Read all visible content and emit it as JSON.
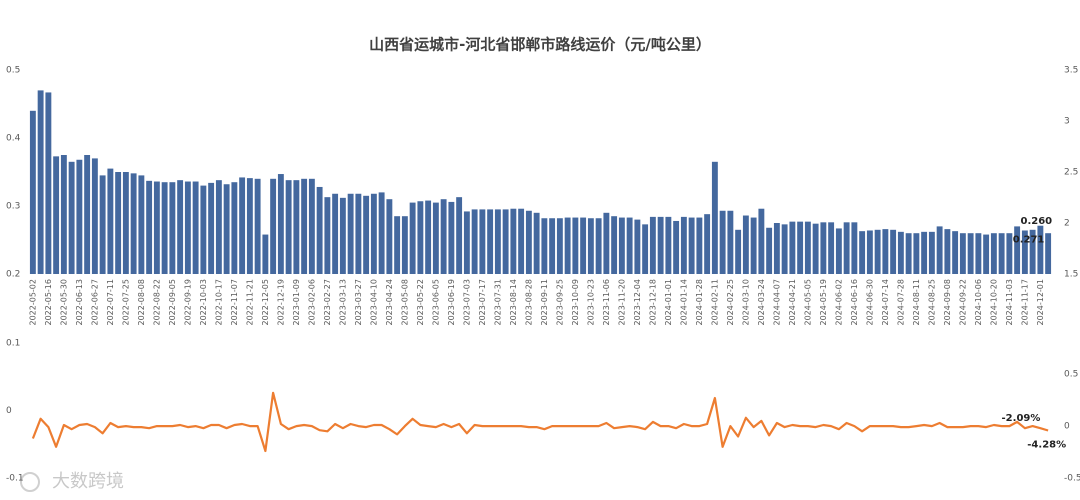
{
  "chart_data": [
    {
      "type": "bar",
      "title": "山西省运城市-河北省邯郸市路线运价（元/吨公里）",
      "color": "#44689e",
      "categories": [
        "2022-05-02",
        null,
        "2022-05-16",
        null,
        "2022-05-30",
        null,
        "2022-06-13",
        null,
        "2022-06-27",
        null,
        "2022-07-11",
        null,
        "2022-07-25",
        null,
        "2022-08-08",
        null,
        "2022-08-22",
        null,
        "2022-09-05",
        null,
        "2022-09-19",
        null,
        "2022-10-03",
        null,
        "2022-10-17",
        null,
        "2022-11-07",
        null,
        "2022-11-21",
        null,
        "2022-12-05",
        null,
        "2022-12-19",
        null,
        "2023-01-09",
        null,
        "2023-02-06",
        null,
        "2023-02-27",
        null,
        "2023-03-13",
        null,
        "2023-03-27",
        null,
        "2023-04-10",
        null,
        "2023-04-24",
        null,
        "2023-05-08",
        null,
        "2023-05-22",
        null,
        "2023-06-05",
        null,
        "2023-06-19",
        null,
        "2023-07-03",
        null,
        "2023-07-17",
        null,
        "2023-07-31",
        null,
        "2023-08-14",
        null,
        "2023-08-28",
        null,
        "2023-09-11",
        null,
        "2023-09-25",
        null,
        "2023-10-09",
        null,
        "2023-10-23",
        null,
        "2023-11-06",
        null,
        "2023-11-20",
        null,
        "2023-12-04",
        null,
        "2023-12-18",
        null,
        "2024-01-01",
        null,
        "2024-01-14",
        null,
        "2024-01-28",
        null,
        "2024-02-11",
        null,
        "2024-02-25",
        null,
        "2024-03-10",
        null,
        "2024-03-24",
        null,
        "2024-04-07",
        null,
        "2024-04-21",
        null,
        "2024-05-05",
        null,
        "2024-05-19",
        null,
        "2024-06-02",
        null,
        "2024-06-16",
        null,
        "2024-06-30",
        null,
        "2024-07-14",
        null,
        "2024-07-28",
        null,
        "2024-08-11",
        null,
        "2024-08-25",
        null,
        "2024-09-08",
        null,
        "2024-09-22",
        null,
        "2024-10-06",
        null,
        "2024-10-20",
        null,
        "2024-11-03",
        null,
        "2024-11-17",
        null,
        "2024-12-01",
        null
      ],
      "values": [
        0.44,
        0.47,
        0.467,
        0.373,
        0.375,
        0.365,
        0.368,
        0.375,
        0.37,
        0.345,
        0.355,
        0.35,
        0.35,
        0.348,
        0.345,
        0.337,
        0.336,
        0.335,
        0.335,
        0.338,
        0.336,
        0.336,
        0.33,
        0.334,
        0.338,
        0.332,
        0.335,
        0.342,
        0.341,
        0.34,
        0.258,
        0.34,
        0.347,
        0.338,
        0.338,
        0.34,
        0.34,
        0.328,
        0.313,
        0.318,
        0.312,
        0.318,
        0.318,
        0.315,
        0.318,
        0.32,
        0.31,
        0.285,
        0.285,
        0.305,
        0.307,
        0.308,
        0.305,
        0.31,
        0.306,
        0.313,
        0.292,
        0.295,
        0.295,
        0.295,
        0.295,
        0.295,
        0.296,
        0.296,
        0.293,
        0.29,
        0.282,
        0.282,
        0.282,
        0.283,
        0.283,
        0.283,
        0.282,
        0.282,
        0.29,
        0.285,
        0.283,
        0.283,
        0.28,
        0.273,
        0.284,
        0.284,
        0.284,
        0.278,
        0.284,
        0.283,
        0.283,
        0.288,
        0.365,
        0.293,
        0.293,
        0.265,
        0.286,
        0.283,
        0.296,
        0.268,
        0.275,
        0.273,
        0.277,
        0.277,
        0.277,
        0.274,
        0.276,
        0.276,
        0.267,
        0.276,
        0.276,
        0.263,
        0.264,
        0.265,
        0.266,
        0.265,
        0.262,
        0.26,
        0.26,
        0.262,
        0.262,
        0.27,
        0.266,
        0.263,
        0.26,
        0.26,
        0.26,
        0.258,
        0.26,
        0.26,
        0.26,
        0.27,
        0.264,
        0.265,
        0.271,
        0.26
      ],
      "value_labels": [
        null,
        null,
        null,
        null,
        null,
        null,
        null,
        null,
        null,
        null,
        null,
        null,
        null,
        null,
        null,
        null,
        null,
        null,
        null,
        null,
        null,
        null,
        null,
        null,
        null,
        null,
        null,
        null,
        null,
        null,
        null,
        null,
        null,
        null,
        null,
        null,
        null,
        null,
        null,
        null,
        null,
        null,
        null,
        null,
        null,
        null,
        null,
        null,
        null,
        null,
        null,
        null,
        null,
        null,
        null,
        null,
        null,
        null,
        null,
        null,
        null,
        null,
        null,
        null,
        null,
        null,
        null,
        null,
        null,
        null,
        null,
        null,
        null,
        null,
        null,
        null,
        null,
        null,
        null,
        null,
        null,
        null,
        null,
        null,
        null,
        null,
        null,
        null,
        null,
        null,
        null,
        null,
        null,
        null,
        null,
        null,
        null,
        null,
        null,
        null,
        null,
        null,
        null,
        null,
        null,
        null,
        null,
        null,
        null,
        null,
        null,
        null,
        null,
        null,
        null,
        null,
        null,
        null,
        null,
        null,
        null,
        null,
        null,
        null,
        null,
        null,
        null,
        null,
        null,
        null,
        "0.271",
        "0.260"
      ],
      "ylim": [
        0.2,
        0.5
      ],
      "yticks": [
        0.2,
        0.3,
        0.4,
        0.5
      ],
      "y2lim": [
        1.5,
        3.5
      ],
      "y2ticks": [
        1.5,
        2,
        2.5,
        3,
        3.5
      ]
    },
    {
      "type": "line",
      "color": "#ed7d31",
      "axis": "y2",
      "values": [
        -0.12,
        0.07,
        -0.01,
        -0.2,
        0.01,
        -0.03,
        0.01,
        0.02,
        -0.01,
        -0.07,
        0.03,
        -0.01,
        0,
        -0.01,
        -0.01,
        -0.02,
        0,
        0,
        0,
        0.01,
        -0.01,
        0,
        -0.02,
        0.01,
        0.01,
        -0.02,
        0.01,
        0.02,
        0,
        0,
        -0.24,
        0.32,
        0.02,
        -0.03,
        0,
        0.01,
        0,
        -0.04,
        -0.05,
        0.02,
        -0.02,
        0.02,
        0,
        -0.01,
        0.01,
        0.01,
        -0.03,
        -0.08,
        0,
        0.07,
        0.01,
        0,
        -0.01,
        0.02,
        -0.01,
        0.02,
        -0.07,
        0.01,
        0,
        0,
        0,
        0,
        0,
        0,
        -0.01,
        -0.01,
        -0.03,
        0,
        0,
        0,
        0,
        0,
        0,
        0,
        0.03,
        -0.02,
        -0.01,
        0,
        -0.01,
        -0.03,
        0.04,
        0,
        0,
        -0.02,
        0.02,
        0,
        0,
        0.02,
        0.27,
        -0.2,
        0,
        -0.1,
        0.08,
        -0.01,
        0.05,
        -0.09,
        0.03,
        -0.01,
        0.01,
        0,
        0,
        -0.01,
        0.01,
        0,
        -0.03,
        0.03,
        0,
        -0.05,
        0,
        0,
        0,
        0,
        -0.01,
        -0.01,
        0,
        0.01,
        0,
        0.03,
        -0.01,
        -0.01,
        -0.01,
        0,
        0,
        -0.01,
        0.01,
        0,
        0,
        0.04,
        -0.02,
        0,
        -0.0209,
        -0.0428
      ],
      "value_labels": [
        null,
        null,
        null,
        null,
        null,
        null,
        null,
        null,
        null,
        null,
        null,
        null,
        null,
        null,
        null,
        null,
        null,
        null,
        null,
        null,
        null,
        null,
        null,
        null,
        null,
        null,
        null,
        null,
        null,
        null,
        null,
        null,
        null,
        null,
        null,
        null,
        null,
        null,
        null,
        null,
        null,
        null,
        null,
        null,
        null,
        null,
        null,
        null,
        null,
        null,
        null,
        null,
        null,
        null,
        null,
        null,
        null,
        null,
        null,
        null,
        null,
        null,
        null,
        null,
        null,
        null,
        null,
        null,
        null,
        null,
        null,
        null,
        null,
        null,
        null,
        null,
        null,
        null,
        null,
        null,
        null,
        null,
        null,
        null,
        null,
        null,
        null,
        null,
        null,
        null,
        null,
        null,
        null,
        null,
        null,
        null,
        null,
        null,
        null,
        null,
        null,
        null,
        null,
        null,
        null,
        null,
        null,
        null,
        null,
        null,
        null,
        null,
        null,
        null,
        null,
        null,
        null,
        null,
        null,
        null,
        null,
        null,
        null,
        null,
        null,
        null,
        null,
        null,
        null,
        null,
        "-2.09%",
        "-4.28%"
      ],
      "ylim": [
        -0.1,
        0.1
      ],
      "yticks": [
        -0.1,
        0,
        0.1
      ],
      "y2lim": [
        -0.5,
        0.8
      ],
      "y2ticks": [
        -0.5,
        0,
        0.5
      ]
    }
  ],
  "watermark": "大数跨境"
}
